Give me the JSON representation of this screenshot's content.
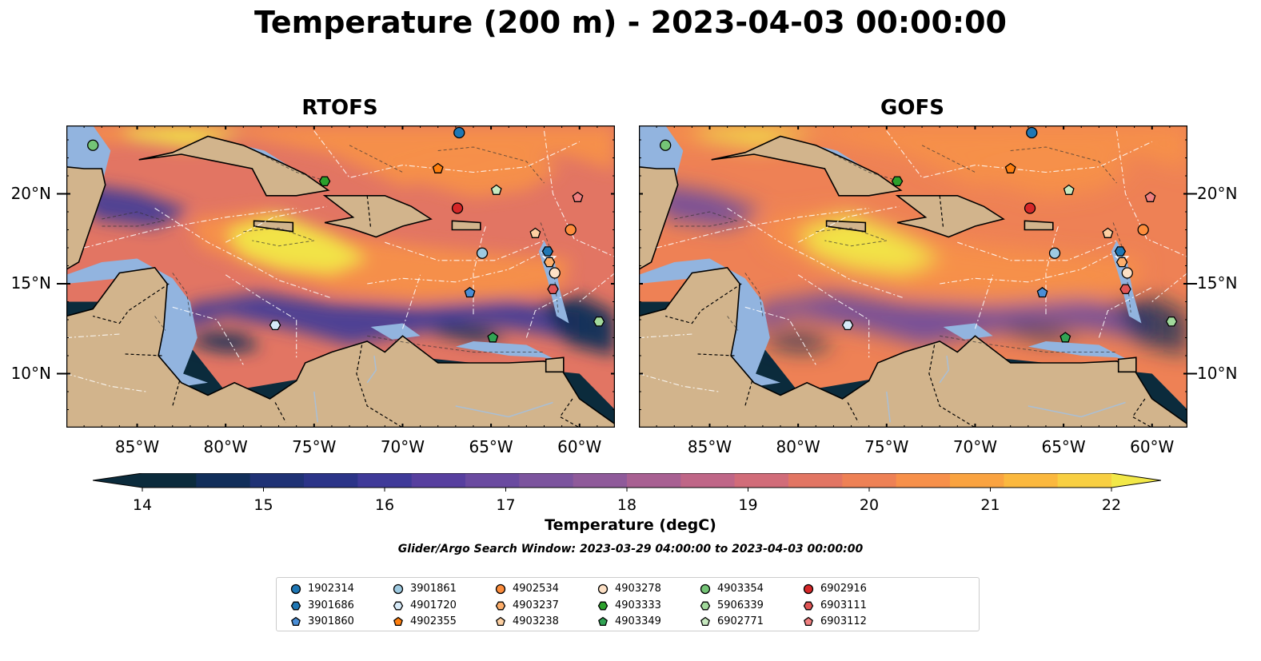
{
  "title": "Temperature (200 m) - 2023-04-03 00:00:00",
  "panels": [
    {
      "title": "RTOFS",
      "variant": 0
    },
    {
      "title": "GOFS",
      "variant": 1
    }
  ],
  "x_ticks": [
    "85°W",
    "80°W",
    "75°W",
    "70°W",
    "65°W",
    "60°W"
  ],
  "y_ticks": [
    "20°N",
    "15°N",
    "10°N"
  ],
  "map_extent": {
    "lon": [
      -89.0,
      -58.0
    ],
    "lat": [
      7.0,
      23.8
    ]
  },
  "colorbar": {
    "label": "Temperature (degC)",
    "ticks": [
      "14",
      "15",
      "16",
      "17",
      "18",
      "19",
      "20",
      "21",
      "22"
    ],
    "range": [
      14,
      22
    ],
    "colors": [
      "#0b2b3c",
      "#112e5a",
      "#1f3275",
      "#2b3488",
      "#3f3a99",
      "#573f9f",
      "#6a4aa0",
      "#7c549e",
      "#8f5a9a",
      "#a86092",
      "#bf6687",
      "#d16c79",
      "#e27563",
      "#ee8155",
      "#f7904a",
      "#faa340",
      "#fbb83e",
      "#f8cf42",
      "#f2e848"
    ]
  },
  "search_window": "Glider/Argo Search Window: 2023-03-29 04:00:00 to 2023-04-03 00:00:00",
  "colors": {
    "land": "#d2b48c",
    "shelf": "#92b4df",
    "deep_low": "#0b2b3c",
    "warm": "#f7904a",
    "hot": "#f2e848"
  },
  "floats": [
    {
      "id": "1902314",
      "marker": "circle",
      "color": "#1f77b4",
      "lon": -66.8,
      "lat": 23.4
    },
    {
      "id": "3901686",
      "marker": "hexagon",
      "color": "#1f77b4",
      "lon": -61.8,
      "lat": 16.8
    },
    {
      "id": "3901860",
      "marker": "pentagon",
      "color": "#4a8ed6",
      "lon": -66.2,
      "lat": 14.5
    },
    {
      "id": "3901861",
      "marker": "circle",
      "color": "#9ecae1",
      "lon": -65.5,
      "lat": 16.7
    },
    {
      "id": "4901720",
      "marker": "hexagon",
      "color": "#d6eaf8",
      "lon": -77.2,
      "lat": 12.7
    },
    {
      "id": "4902355",
      "marker": "pentagon",
      "color": "#ff7f0e",
      "lon": -68.0,
      "lat": 21.4
    },
    {
      "id": "4902534",
      "marker": "circle",
      "color": "#fd8d3c",
      "lon": -60.5,
      "lat": 18.0
    },
    {
      "id": "4903237",
      "marker": "hexagon",
      "color": "#fdae6b",
      "lon": -61.7,
      "lat": 16.2
    },
    {
      "id": "4903238",
      "marker": "pentagon",
      "color": "#fdd0a2",
      "lon": -62.5,
      "lat": 17.8
    },
    {
      "id": "4903278",
      "marker": "circle",
      "color": "#fde0c5",
      "lon": -61.4,
      "lat": 15.6
    },
    {
      "id": "4903333",
      "marker": "hexagon",
      "color": "#2ca02c",
      "lon": -74.4,
      "lat": 20.7
    },
    {
      "id": "4903349",
      "marker": "pentagon",
      "color": "#31a354",
      "lon": -64.9,
      "lat": 12.0
    },
    {
      "id": "4903354",
      "marker": "circle",
      "color": "#74c476",
      "lon": -87.5,
      "lat": 22.7
    },
    {
      "id": "5906339",
      "marker": "hexagon",
      "color": "#a1d99b",
      "lon": -58.9,
      "lat": 12.9
    },
    {
      "id": "6902771",
      "marker": "pentagon",
      "color": "#c7e9c0",
      "lon": -64.7,
      "lat": 20.2
    },
    {
      "id": "6902916",
      "marker": "circle",
      "color": "#d62728",
      "lon": -66.9,
      "lat": 19.2
    },
    {
      "id": "6903111",
      "marker": "hexagon",
      "color": "#e05555",
      "lon": -61.5,
      "lat": 14.7
    },
    {
      "id": "6903112",
      "marker": "pentagon",
      "color": "#f08080",
      "lon": -60.1,
      "lat": 19.8
    }
  ]
}
